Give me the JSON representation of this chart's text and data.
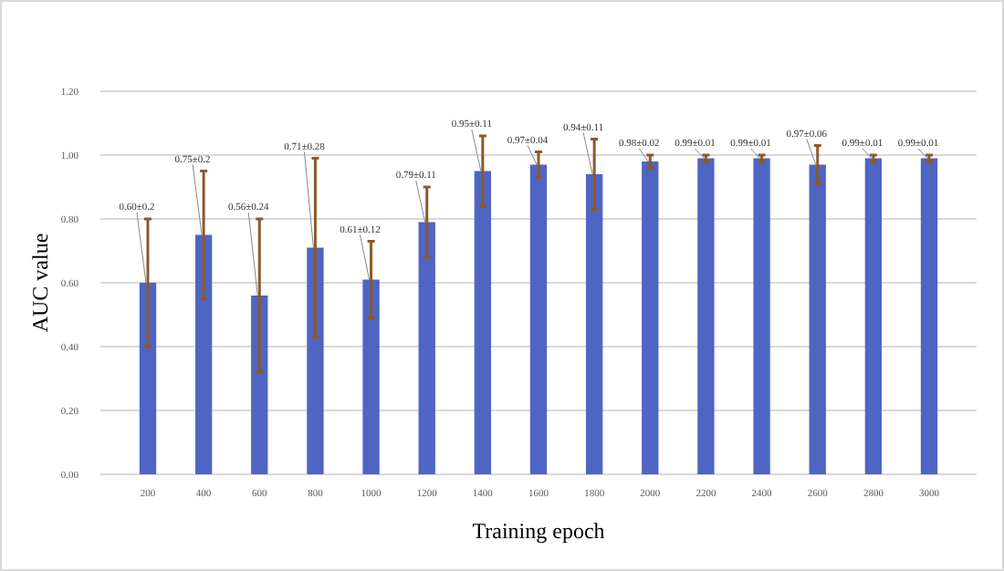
{
  "chart_data": {
    "type": "bar",
    "xlabel": "Training  epoch",
    "ylabel": "AUC value",
    "categories": [
      "200",
      "400",
      "600",
      "800",
      "1000",
      "1200",
      "1400",
      "1600",
      "1800",
      "2000",
      "2200",
      "2400",
      "2600",
      "2800",
      "3000"
    ],
    "values": [
      0.6,
      0.75,
      0.56,
      0.71,
      0.61,
      0.79,
      0.95,
      0.97,
      0.94,
      0.98,
      0.99,
      0.99,
      0.97,
      0.99,
      0.99
    ],
    "errors": [
      0.2,
      0.2,
      0.24,
      0.28,
      0.12,
      0.11,
      0.11,
      0.04,
      0.11,
      0.02,
      0.01,
      0.01,
      0.06,
      0.01,
      0.01
    ],
    "value_labels": [
      "0.60±0.2",
      "0.75±0.2",
      "0.56±0.24",
      "0.71±0.28",
      "0.61±0.12",
      "0.79±0.11",
      "0.95±0.11",
      "0.97±0.04",
      "0.94±0.11",
      "0.98±0.02",
      "0.99±0.01",
      "0.99±0.01",
      "0.97±0.06",
      "0.99±0.01",
      "0.99±0.01"
    ],
    "color": "#4f65c4",
    "ylim": [
      0,
      1.2
    ],
    "yticks": [
      {
        "value": 0,
        "label": "0.00"
      },
      {
        "value": 0.2,
        "label": "0.20"
      },
      {
        "value": 0.4,
        "label": "0.40"
      },
      {
        "value": 0.6,
        "label": "0.60"
      },
      {
        "value": 0.8,
        "label": "0.80"
      },
      {
        "value": 1,
        "label": "1.00"
      },
      {
        "value": 1.2,
        "label": "1.20"
      }
    ],
    "grid": "y"
  }
}
